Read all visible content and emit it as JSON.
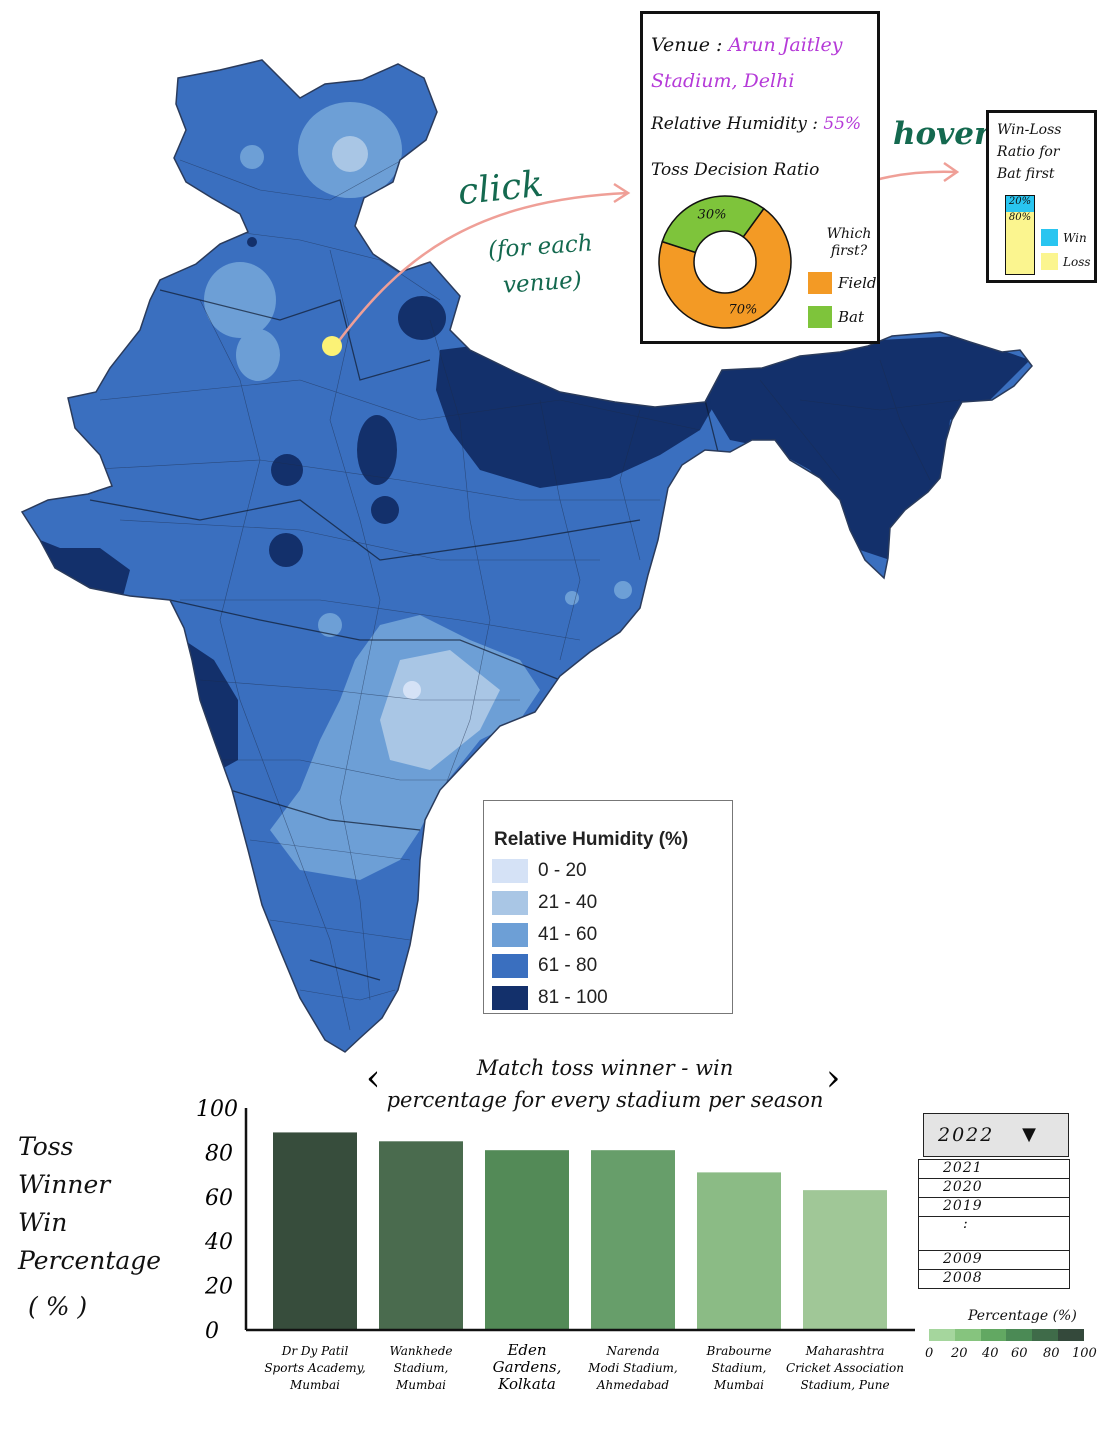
{
  "map": {
    "legend_title": "Relative Humidity (%)",
    "legend_items": [
      {
        "label": "0 - 20",
        "color": "#d5e2f6"
      },
      {
        "label": "21 - 40",
        "color": "#a9c6e5"
      },
      {
        "label": "41 - 60",
        "color": "#6d9fd6"
      },
      {
        "label": "61 - 80",
        "color": "#3a6fbf"
      },
      {
        "label": "81 - 100",
        "color": "#13306b"
      }
    ],
    "selected_marker_color": "#fbf276"
  },
  "annotations": {
    "click": "click",
    "click_note_1": "(for each",
    "click_note_2": "venue)",
    "hover": "hover"
  },
  "venue_popup": {
    "venue_label": "Venue :",
    "venue_name_1": "Arun Jaitley",
    "venue_name_2": "Stadium, Delhi",
    "humidity_label": "Relative Humidity :",
    "humidity_value": "55%",
    "toss_title": "Toss Decision Ratio",
    "legend_title_1": "Which",
    "legend_title_2": "first?",
    "slices": [
      {
        "name": "Field",
        "value": 70,
        "label": "70%",
        "color": "#f39a25"
      },
      {
        "name": "Bat",
        "value": 30,
        "label": "30%",
        "color": "#7ec43b"
      }
    ]
  },
  "winloss_popup": {
    "title_1": "Win-Loss",
    "title_2": "Ratio for",
    "title_3": "Bat first",
    "win_label": "Win",
    "loss_label": "Loss",
    "win_value": 20,
    "win_text": "20%",
    "loss_value": 80,
    "loss_text": "80%",
    "win_color": "#29c5f0",
    "loss_color": "#fbf58f"
  },
  "chart_data": {
    "type": "bar",
    "title_line1": "Match toss winner - win",
    "title_line2": "percentage for every stadium per season",
    "nav_prev": "‹",
    "nav_next": "›",
    "ylabel_lines": [
      "Toss",
      "Winner",
      "Win",
      "Percentage",
      "( % )"
    ],
    "ylim": [
      0,
      100
    ],
    "yticks": [
      0,
      20,
      40,
      60,
      80,
      100
    ],
    "categories": [
      [
        "Dr Dy Patil",
        "Sports Academy,",
        "Mumbai"
      ],
      [
        "Wankhede",
        "Stadium,",
        "Mumbai"
      ],
      [
        "Eden",
        "Gardens,",
        "Kolkata"
      ],
      [
        "Narenda",
        "Modi Stadium,",
        "Ahmedabad"
      ],
      [
        "Brabourne",
        "Stadium,",
        "Mumbai"
      ],
      [
        "Maharashtra",
        "Cricket Association",
        "Stadium, Pune"
      ]
    ],
    "values": [
      89,
      85,
      81,
      81,
      71,
      63
    ],
    "colors": [
      "#374d3c",
      "#4a6b4e",
      "#538a57",
      "#679e6a",
      "#8bbb85",
      "#a0c797"
    ]
  },
  "season_select": {
    "selected": "2022",
    "arrow": "▼",
    "options": [
      "2021",
      "2020",
      "2019",
      ":",
      "2009",
      "2008"
    ]
  },
  "percentage_scale": {
    "title": "Percentage (%)",
    "ticks": [
      "0",
      "20",
      "40",
      "60",
      "80",
      "100"
    ],
    "colors": [
      "#a5d69d",
      "#86c47e",
      "#62a862",
      "#4b8a55",
      "#3f6b49",
      "#34493b"
    ]
  }
}
